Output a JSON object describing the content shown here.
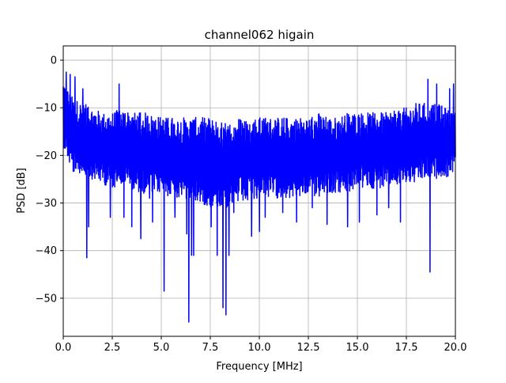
{
  "chart_data": {
    "type": "line",
    "title": "channel062 higain",
    "xlabel": "Frequency [MHz]",
    "ylabel": "PSD [dB]",
    "xlim": [
      0,
      20
    ],
    "ylim": [
      -58,
      3
    ],
    "xticks": [
      0,
      2.5,
      5,
      7.5,
      10,
      12.5,
      15,
      17.5,
      20
    ],
    "xtick_labels": [
      "0.0",
      "2.5",
      "5.0",
      "7.5",
      "10.0",
      "12.5",
      "15.0",
      "17.5",
      "20.0"
    ],
    "yticks": [
      0,
      -10,
      -20,
      -30,
      -40,
      -50
    ],
    "ytick_labels": [
      "0",
      "−10",
      "−20",
      "−30",
      "−40",
      "−50"
    ],
    "grid": true,
    "line_color": "#0000ff",
    "series": [
      {
        "band_x": [
          0,
          0.5,
          1,
          1.5,
          2,
          2.5,
          3,
          3.5,
          4,
          4.5,
          5,
          5.5,
          6,
          6.5,
          7,
          7.5,
          8,
          8.5,
          9,
          9.5,
          10,
          10.5,
          11,
          11.5,
          12,
          12.5,
          13,
          13.5,
          14,
          14.5,
          15,
          15.5,
          16,
          16.5,
          17,
          17.5,
          18,
          18.5,
          19,
          19.5,
          20
        ],
        "band_upper": [
          -4,
          -8,
          -9,
          -10,
          -11,
          -11,
          -10,
          -11,
          -11,
          -11,
          -12,
          -12,
          -12,
          -12,
          -12,
          -12,
          -13,
          -13,
          -12,
          -12,
          -12,
          -12,
          -12,
          -12,
          -12,
          -12,
          -11,
          -12,
          -12,
          -11,
          -11,
          -11,
          -11,
          -11,
          -10,
          -10,
          -9,
          -9,
          -9,
          -10,
          -11
        ],
        "band_lower": [
          -18,
          -24,
          -25,
          -25,
          -26,
          -27,
          -26,
          -27,
          -28,
          -28,
          -28,
          -29,
          -29,
          -30,
          -30,
          -31,
          -31,
          -31,
          -30,
          -30,
          -29,
          -29,
          -29,
          -29,
          -29,
          -28,
          -29,
          -28,
          -28,
          -28,
          -27,
          -27,
          -27,
          -27,
          -26,
          -26,
          -26,
          -25,
          -25,
          -25,
          -23
        ],
        "spikes": [
          [
            0.15,
            -2.5
          ],
          [
            0.35,
            -3
          ],
          [
            0.6,
            -3.5
          ],
          [
            1.0,
            -6
          ],
          [
            1.2,
            -41.5
          ],
          [
            1.3,
            -35
          ],
          [
            2.85,
            -5
          ],
          [
            2.4,
            -33
          ],
          [
            3.1,
            -33
          ],
          [
            3.5,
            -35
          ],
          [
            3.95,
            -37.5
          ],
          [
            4.4,
            -29
          ],
          [
            4.55,
            -34
          ],
          [
            5.15,
            -48.5
          ],
          [
            5.7,
            -33
          ],
          [
            6.3,
            -36.5
          ],
          [
            6.4,
            -55
          ],
          [
            6.55,
            -41
          ],
          [
            6.65,
            -41
          ],
          [
            7.55,
            -35
          ],
          [
            7.85,
            -41
          ],
          [
            8.15,
            -52
          ],
          [
            8.3,
            -53.5
          ],
          [
            8.45,
            -41
          ],
          [
            8.7,
            -32
          ],
          [
            9.3,
            -29
          ],
          [
            9.6,
            -37
          ],
          [
            10.0,
            -36
          ],
          [
            10.3,
            -33
          ],
          [
            11.2,
            -32
          ],
          [
            11.9,
            -34
          ],
          [
            12.7,
            -31
          ],
          [
            13.45,
            -34.5
          ],
          [
            14.5,
            -35
          ],
          [
            15.1,
            -34
          ],
          [
            16.0,
            -32.5
          ],
          [
            16.6,
            -31
          ],
          [
            17.2,
            -34
          ],
          [
            18.7,
            -44.5
          ],
          [
            18.6,
            -4
          ],
          [
            19.05,
            -5
          ],
          [
            19.7,
            -6
          ],
          [
            19.9,
            -5
          ]
        ]
      }
    ]
  }
}
